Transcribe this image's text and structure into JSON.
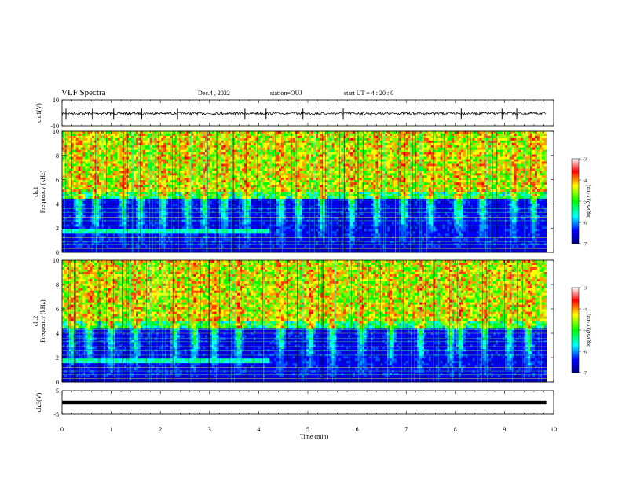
{
  "header": {
    "title": "VLF Spectra",
    "date": "Dec.4 , 2022",
    "station": "station=OUJ",
    "start": "start UT = 4 : 20 : 0"
  },
  "chart_data": [
    {
      "type": "line",
      "name": "ch1-waveform",
      "ylabel": "ch.1(V)",
      "ylim": [
        -10,
        10
      ],
      "yticks": [
        "10",
        "-10"
      ],
      "xlim": [
        0,
        10
      ],
      "baseline": -0.5,
      "spikes_min": [
        0.08,
        0.62,
        1.05,
        1.62,
        2.35,
        3.72,
        4.15,
        4.9,
        5.72,
        7.18,
        8.12,
        8.95,
        9.25
      ]
    },
    {
      "type": "heatmap",
      "name": "ch1-spectrogram",
      "ylabel": "ch.1 Frequency (kHz)",
      "yticks": [
        "0",
        "2",
        "4",
        "6",
        "8",
        "10"
      ],
      "ylim": [
        0,
        10
      ],
      "xlim": [
        0,
        10
      ],
      "colorbar": {
        "label": "log(PSD)(V²/Hz)",
        "ticks": [
          "-3",
          "-4",
          "-5",
          "-6",
          "-7"
        ],
        "range": [
          -7,
          -3
        ]
      },
      "hiss_band_khz": [
        1.6,
        2.0
      ],
      "hiss_end_min": 4.2
    },
    {
      "type": "heatmap",
      "name": "ch2-spectrogram",
      "ylabel": "ch.2 Frequency (kHz)",
      "yticks": [
        "0",
        "2",
        "4",
        "6",
        "8",
        "10"
      ],
      "ylim": [
        0,
        10
      ],
      "xlim": [
        0,
        10
      ],
      "colorbar": {
        "label": "log(PSD)(V²/Hz)",
        "ticks": [
          "-3",
          "-4",
          "-5",
          "-6",
          "-7"
        ],
        "range": [
          -7,
          -3
        ]
      },
      "hiss_band_khz": [
        1.6,
        2.0
      ],
      "hiss_end_min": 4.2
    },
    {
      "type": "line",
      "name": "ch3-waveform",
      "ylabel": "ch.3(V)",
      "ylim": [
        -5,
        5
      ],
      "yticks": [
        "5",
        "-5"
      ],
      "xlim": [
        0,
        10
      ],
      "baseline": 0,
      "xlabel": "Time (min)",
      "xticks": [
        "0",
        "1",
        "2",
        "3",
        "4",
        "5",
        "6",
        "7",
        "8",
        "9",
        "10"
      ]
    }
  ]
}
